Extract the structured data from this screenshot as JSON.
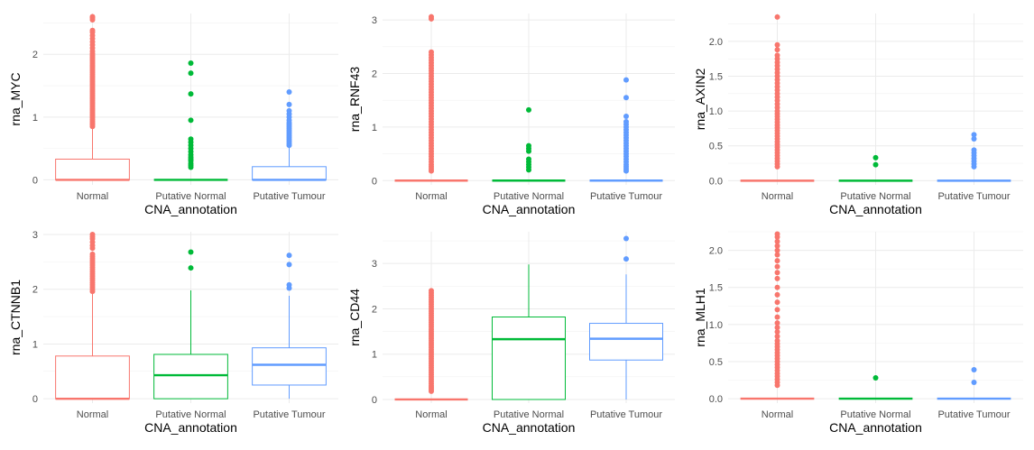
{
  "chart_data": [
    {
      "type": "box",
      "xlabel": "CNA_annotation",
      "ylabel": "rna_MYC",
      "ylim": [
        -0.08,
        2.65
      ],
      "yticks": [
        0,
        1,
        2
      ],
      "ytick_labels": [
        "0",
        "1",
        "2"
      ],
      "categories": [
        "Normal",
        "Putative Normal",
        "Putative Tumour"
      ],
      "colors": [
        "#F8766D",
        "#00BA38",
        "#619CFF"
      ],
      "series": [
        {
          "q1": 0,
          "median": 0,
          "q3": 0.33,
          "whisker_low": 0,
          "whisker_high": 0.82,
          "outliers": [
            0.85,
            0.88,
            0.9,
            0.93,
            0.96,
            0.99,
            1.02,
            1.05,
            1.08,
            1.11,
            1.14,
            1.17,
            1.2,
            1.23,
            1.26,
            1.29,
            1.32,
            1.35,
            1.38,
            1.41,
            1.44,
            1.47,
            1.5,
            1.53,
            1.56,
            1.59,
            1.62,
            1.65,
            1.68,
            1.71,
            1.74,
            1.77,
            1.8,
            1.83,
            1.86,
            1.89,
            1.92,
            1.95,
            1.98,
            2.01,
            2.05,
            2.1,
            2.15,
            2.2,
            2.25,
            2.3,
            2.35,
            2.38,
            2.55,
            2.58,
            2.6
          ]
        },
        {
          "q1": 0,
          "median": 0,
          "q3": 0,
          "whisker_low": 0,
          "whisker_high": 0,
          "outliers": [
            0.2,
            0.23,
            0.26,
            0.3,
            0.33,
            0.36,
            0.4,
            0.45,
            0.5,
            0.55,
            0.6,
            0.65,
            0.95,
            1.37,
            1.7,
            1.86
          ]
        },
        {
          "q1": 0,
          "median": 0,
          "q3": 0.21,
          "whisker_low": 0,
          "whisker_high": 0.52,
          "outliers": [
            0.55,
            0.58,
            0.61,
            0.64,
            0.67,
            0.7,
            0.73,
            0.76,
            0.79,
            0.82,
            0.85,
            0.88,
            0.91,
            0.95,
            1.0,
            1.05,
            1.1,
            1.2,
            1.4
          ]
        }
      ]
    },
    {
      "type": "box",
      "xlabel": "CNA_annotation",
      "ylabel": "rna_RNF43",
      "ylim": [
        -0.08,
        3.12
      ],
      "yticks": [
        0,
        1,
        2,
        3
      ],
      "ytick_labels": [
        "0",
        "1",
        "2",
        "3"
      ],
      "categories": [
        "Normal",
        "Putative Normal",
        "Putative Tumour"
      ],
      "colors": [
        "#F8766D",
        "#00BA38",
        "#619CFF"
      ],
      "series": [
        {
          "q1": 0,
          "median": 0,
          "q3": 0,
          "whisker_low": 0,
          "whisker_high": 0,
          "outliers": [
            0.18,
            0.22,
            0.26,
            0.3,
            0.35,
            0.4,
            0.45,
            0.5,
            0.55,
            0.6,
            0.65,
            0.7,
            0.75,
            0.8,
            0.85,
            0.9,
            0.95,
            1.0,
            1.05,
            1.1,
            1.15,
            1.2,
            1.25,
            1.3,
            1.35,
            1.4,
            1.45,
            1.5,
            1.55,
            1.6,
            1.65,
            1.7,
            1.75,
            1.8,
            1.85,
            1.9,
            1.95,
            2.0,
            2.05,
            2.1,
            2.15,
            2.2,
            2.25,
            2.3,
            2.35,
            2.4,
            3.02,
            3.06
          ]
        },
        {
          "q1": 0,
          "median": 0,
          "q3": 0,
          "whisker_low": 0,
          "whisker_high": 0,
          "outliers": [
            0.2,
            0.25,
            0.3,
            0.35,
            0.4,
            0.55,
            0.6,
            0.65,
            1.32
          ]
        },
        {
          "q1": 0,
          "median": 0,
          "q3": 0,
          "whisker_low": 0,
          "whisker_high": 0,
          "outliers": [
            0.18,
            0.22,
            0.26,
            0.3,
            0.35,
            0.4,
            0.45,
            0.5,
            0.55,
            0.6,
            0.65,
            0.7,
            0.75,
            0.8,
            0.85,
            0.9,
            0.95,
            1.0,
            1.05,
            1.1,
            1.2,
            1.55,
            1.88
          ]
        }
      ]
    },
    {
      "type": "box",
      "xlabel": "CNA_annotation",
      "ylabel": "rna_AXIN2",
      "ylim": [
        -0.06,
        2.4
      ],
      "yticks": [
        0,
        0.5,
        1,
        1.5,
        2
      ],
      "ytick_labels": [
        "0.0",
        "0.5",
        "1.0",
        "1.5",
        "2.0"
      ],
      "categories": [
        "Normal",
        "Putative Normal",
        "Putative Tumour"
      ],
      "colors": [
        "#F8766D",
        "#00BA38",
        "#619CFF"
      ],
      "series": [
        {
          "q1": 0,
          "median": 0,
          "q3": 0,
          "whisker_low": 0,
          "whisker_high": 0,
          "outliers": [
            0.2,
            0.24,
            0.28,
            0.32,
            0.36,
            0.4,
            0.44,
            0.48,
            0.52,
            0.56,
            0.6,
            0.64,
            0.68,
            0.72,
            0.76,
            0.8,
            0.84,
            0.88,
            0.92,
            0.96,
            1.0,
            1.05,
            1.1,
            1.15,
            1.2,
            1.25,
            1.3,
            1.35,
            1.4,
            1.45,
            1.5,
            1.55,
            1.6,
            1.65,
            1.7,
            1.75,
            1.8,
            1.88,
            1.95,
            2.35
          ]
        },
        {
          "q1": 0,
          "median": 0,
          "q3": 0,
          "whisker_low": 0,
          "whisker_high": 0,
          "outliers": [
            0.23,
            0.33
          ]
        },
        {
          "q1": 0,
          "median": 0,
          "q3": 0,
          "whisker_low": 0,
          "whisker_high": 0,
          "outliers": [
            0.2,
            0.24,
            0.28,
            0.32,
            0.36,
            0.4,
            0.44,
            0.6,
            0.66
          ]
        }
      ]
    },
    {
      "type": "box",
      "xlabel": "CNA_annotation",
      "ylabel": "rna_CTNNB1",
      "ylim": [
        -0.08,
        3.05
      ],
      "yticks": [
        0,
        1,
        2,
        3
      ],
      "ytick_labels": [
        "0",
        "1",
        "2",
        "3"
      ],
      "categories": [
        "Normal",
        "Putative Normal",
        "Putative Tumour"
      ],
      "colors": [
        "#F8766D",
        "#00BA38",
        "#619CFF"
      ],
      "series": [
        {
          "q1": 0,
          "median": 0,
          "q3": 0.78,
          "whisker_low": 0,
          "whisker_high": 1.93,
          "outliers": [
            1.96,
            2.0,
            2.04,
            2.08,
            2.12,
            2.16,
            2.2,
            2.24,
            2.28,
            2.32,
            2.36,
            2.4,
            2.44,
            2.48,
            2.52,
            2.56,
            2.6,
            2.64,
            2.75,
            2.8,
            2.86,
            2.92,
            2.96,
            3.0
          ]
        },
        {
          "q1": 0,
          "median": 0.43,
          "q3": 0.81,
          "whisker_low": 0,
          "whisker_high": 1.98,
          "outliers": [
            2.39,
            2.68
          ]
        },
        {
          "q1": 0.25,
          "median": 0.62,
          "q3": 0.93,
          "whisker_low": 0,
          "whisker_high": 1.88,
          "outliers": [
            2.02,
            2.08,
            2.45,
            2.62
          ]
        }
      ]
    },
    {
      "type": "box",
      "xlabel": "CNA_annotation",
      "ylabel": "rna_CD44",
      "ylim": [
        -0.08,
        3.7
      ],
      "yticks": [
        0,
        1,
        2,
        3
      ],
      "ytick_labels": [
        "0",
        "1",
        "2",
        "3"
      ],
      "categories": [
        "Normal",
        "Putative Normal",
        "Putative Tumour"
      ],
      "colors": [
        "#F8766D",
        "#00BA38",
        "#619CFF"
      ],
      "series": [
        {
          "q1": 0,
          "median": 0,
          "q3": 0,
          "whisker_low": 0,
          "whisker_high": 0,
          "outliers": [
            0.18,
            0.22,
            0.26,
            0.3,
            0.35,
            0.4,
            0.45,
            0.5,
            0.55,
            0.6,
            0.65,
            0.7,
            0.75,
            0.8,
            0.85,
            0.9,
            0.95,
            1.0,
            1.05,
            1.1,
            1.15,
            1.2,
            1.25,
            1.3,
            1.35,
            1.4,
            1.45,
            1.5,
            1.55,
            1.6,
            1.65,
            1.7,
            1.75,
            1.8,
            1.85,
            1.9,
            1.95,
            2.0,
            2.05,
            2.1,
            2.15,
            2.2,
            2.25,
            2.3,
            2.35,
            2.4
          ]
        },
        {
          "q1": 0,
          "median": 1.33,
          "q3": 1.82,
          "whisker_low": 0,
          "whisker_high": 2.98,
          "outliers": []
        },
        {
          "q1": 0.87,
          "median": 1.34,
          "q3": 1.68,
          "whisker_low": 0,
          "whisker_high": 2.76,
          "outliers": [
            3.1,
            3.55
          ]
        }
      ]
    },
    {
      "type": "box",
      "xlabel": "CNA_annotation",
      "ylabel": "rna_MLH1",
      "ylim": [
        -0.06,
        2.25
      ],
      "yticks": [
        0,
        0.5,
        1,
        1.5,
        2
      ],
      "ytick_labels": [
        "0.0",
        "0.5",
        "1.0",
        "1.5",
        "2.0"
      ],
      "categories": [
        "Normal",
        "Putative Normal",
        "Putative Tumour"
      ],
      "colors": [
        "#F8766D",
        "#00BA38",
        "#619CFF"
      ],
      "series": [
        {
          "q1": 0,
          "median": 0,
          "q3": 0,
          "whisker_low": 0,
          "whisker_high": 0,
          "outliers": [
            0.18,
            0.22,
            0.26,
            0.3,
            0.34,
            0.38,
            0.42,
            0.46,
            0.5,
            0.54,
            0.58,
            0.62,
            0.66,
            0.7,
            0.74,
            0.78,
            0.84,
            0.9,
            0.96,
            1.02,
            1.1,
            1.2,
            1.3,
            1.4,
            1.5,
            1.62,
            1.7,
            1.78,
            1.86,
            1.94,
            2.0,
            2.06,
            2.12,
            2.18,
            2.22
          ]
        },
        {
          "q1": 0,
          "median": 0,
          "q3": 0,
          "whisker_low": 0,
          "whisker_high": 0,
          "outliers": [
            0.28
          ]
        },
        {
          "q1": 0,
          "median": 0,
          "q3": 0,
          "whisker_low": 0,
          "whisker_high": 0,
          "outliers": [
            0.22,
            0.39
          ]
        }
      ]
    }
  ]
}
